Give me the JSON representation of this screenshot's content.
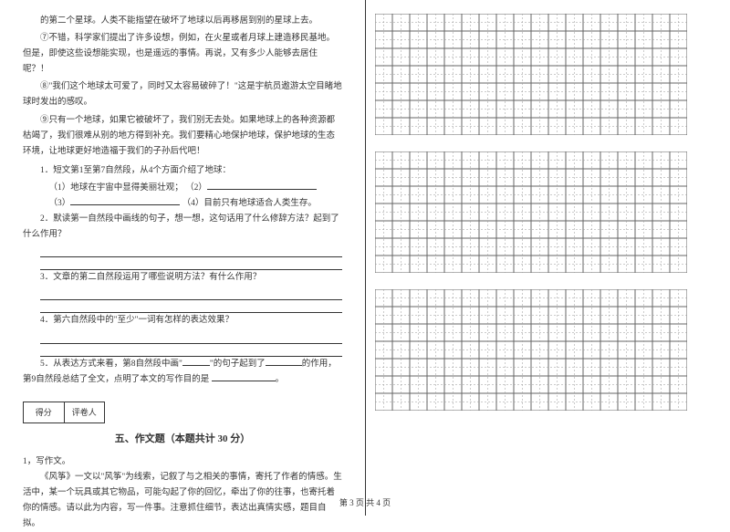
{
  "text": {
    "p1": "的第二个星球。人类不能指望在破坏了地球以后再移居到别的星球上去。",
    "p2": "⑦不错，科学家们提出了许多设想，例如，在火星或者月球上建造移民基地。但是，即使这些设想能实现，也是遥远的事情。再说，又有多少人能够去居住呢？！",
    "p3": "⑧\"我们这个地球太可爱了，同时又太容易破碎了！\"这是宇航员遨游太空目睹地球时发出的感叹。",
    "p4": "⑨只有一个地球，如果它被破坏了，我们别无去处。如果地球上的各种资源都枯竭了，我们很难从别的地方得到补充。我们要精心地保护地球，保护地球的生态环境，让地球更好地造福于我们的子孙后代吧！"
  },
  "questions": {
    "q1": "1．短文第1至第7自然段，从4个方面介绍了地球：",
    "q1_sub1_pre": "（1）地球在宇宙中显得美丽壮观；",
    "q1_sub2": "（2）",
    "q1_sub3": "（3）",
    "q1_sub4": "（4）目前只有地球适合人类生存。",
    "q2": "2．默读第一自然段中画线的句子，想一想，这句话用了什么修辞方法？起到了什么作用？",
    "q3": "3．文章的第二自然段运用了哪些说明方法？有什么作用？",
    "q4": "4．第六自然段中的\"至少\"一词有怎样的表达效果？",
    "q5_pre": "5．从表达方式来看，第8自然段中画\"",
    "q5_mid": "\"的句子起到了",
    "q5_mid2": "的作用，第9自然段总结了全文，点明了本文的写作目的是",
    "q5_end": "。"
  },
  "scoreBox": {
    "label1": "得分",
    "label2": "评卷人"
  },
  "section5": {
    "title": "五、作文题（本题共计 30 分）",
    "item": "1，写作文。",
    "intro1": "《风筝》一文以\"风筝\"为线索，记叙了与之相关的事情，寄托了作者的情感。生活中，某一个玩具或其它物品，可能勾起了你的回忆，牵出了你的往事，也寄托着你的情感。请以此为内容，写一件事。注意抓住细节，表达出真情实感，题目自拟。"
  },
  "footer": "第 3 页 共 4 页",
  "grid": {
    "rows": 7,
    "cols": 18,
    "cellSize": 19,
    "borderColor": "#666666",
    "dashColor": "#999999",
    "blocks": 3
  }
}
